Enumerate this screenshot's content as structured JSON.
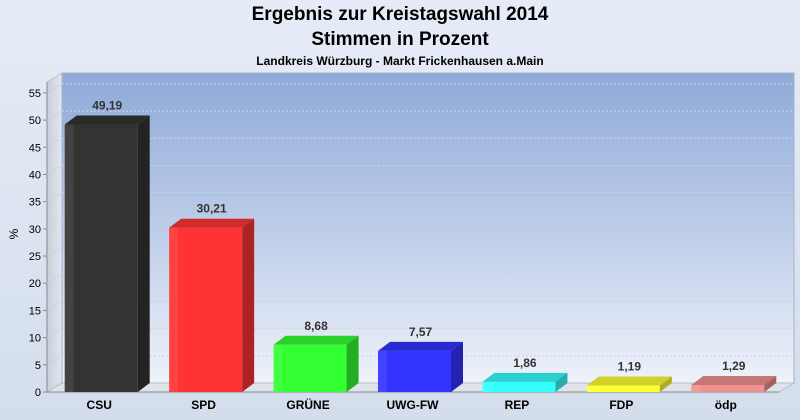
{
  "chart_data": {
    "type": "bar",
    "title": "Ergebnis zur Kreistagswahl 2014",
    "subtitle": "Stimmen in Prozent",
    "subtitle2": "Landkreis Würzburg - Markt Frickenhausen a.Main",
    "xlabel": "",
    "ylabel": "%",
    "ylim": [
      0,
      57
    ],
    "yticks": [
      "0",
      "5",
      "10",
      "15",
      "20",
      "25",
      "30",
      "35",
      "40",
      "45",
      "50",
      "55"
    ],
    "grid": true,
    "legend": "none",
    "categories": [
      "CSU",
      "SPD",
      "GRÜNE",
      "UWG-FW",
      "REP",
      "FDP",
      "ödp"
    ],
    "values": [
      49.19,
      30.21,
      8.68,
      7.57,
      1.86,
      1.19,
      1.29
    ],
    "value_labels": [
      "49,19",
      "30,21",
      "8,68",
      "7,57",
      "1,86",
      "1,19",
      "1,29"
    ],
    "colors": [
      "#333333",
      "#ff3333",
      "#33ff33",
      "#3333ff",
      "#33ffff",
      "#ffff33",
      "#f09090"
    ]
  }
}
